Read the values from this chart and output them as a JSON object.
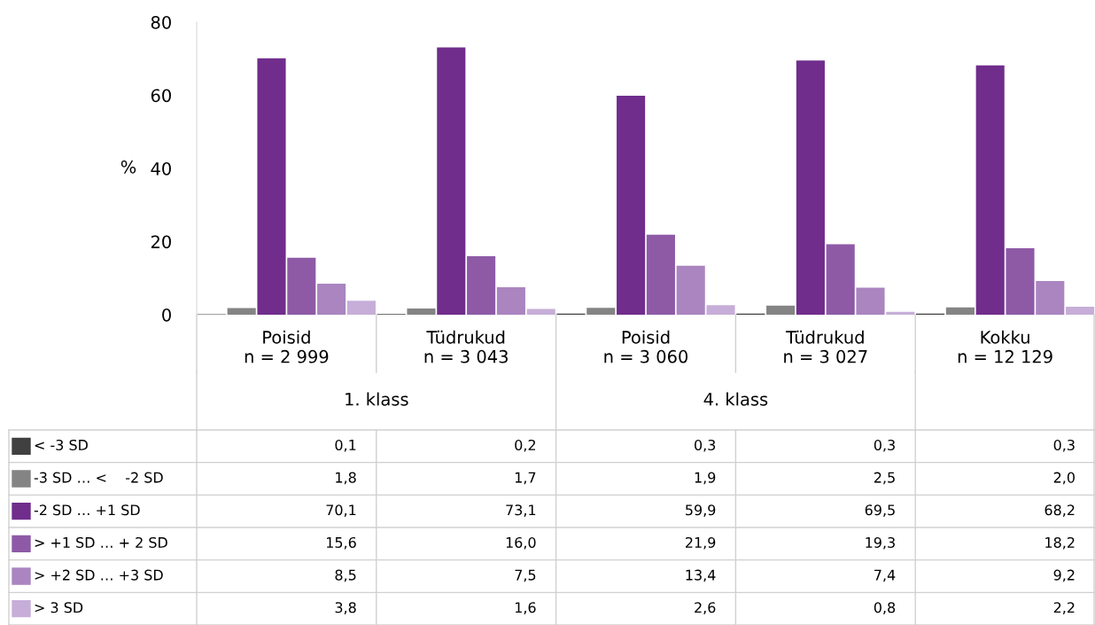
{
  "chart_data": {
    "type": "bar",
    "ylabel": "%",
    "categories": [
      "Poisid\nn = 2 999",
      "Tüdrukud\nn = 3 043",
      "Poisid\nn = 3 060",
      "Tüdrukud\nn = 3 027",
      "Kokku\nn = 12 129"
    ],
    "annotations": [
      "1. klass",
      "4. klass"
    ],
    "series": [
      {
        "name": "< -3 SD",
        "color": "#404040",
        "values": [
          0.1,
          0.2,
          0.3,
          0.3,
          0.3
        ],
        "value_labels": [
          "0,1",
          "0,2",
          "0,3",
          "0,3",
          "0,3"
        ]
      },
      {
        "name": "-3 SD … <    -2 SD",
        "color": "#848484",
        "values": [
          1.8,
          1.7,
          1.9,
          2.5,
          2.0
        ],
        "value_labels": [
          "1,8",
          "1,7",
          "1,9",
          "2,5",
          "2,0"
        ]
      },
      {
        "name": "-2 SD … +1 SD",
        "color": "#702d8c",
        "values": [
          70.1,
          73.1,
          59.9,
          69.5,
          68.2
        ],
        "value_labels": [
          "70,1",
          "73,1",
          "59,9",
          "69,5",
          "68,2"
        ]
      },
      {
        "name": "> +1 SD … + 2 SD",
        "color": "#8e5aa6",
        "values": [
          15.6,
          16.0,
          21.9,
          19.3,
          18.2
        ],
        "value_labels": [
          "15,6",
          "16,0",
          "21,9",
          "19,3",
          "18,2"
        ]
      },
      {
        "name": "> +2 SD … +3 SD",
        "color": "#aa85c0",
        "values": [
          8.5,
          7.5,
          13.4,
          7.4,
          9.2
        ],
        "value_labels": [
          "8,5",
          "7,5",
          "13,4",
          "7,4",
          "9,2"
        ]
      },
      {
        "name": "> 3 SD",
        "color": "#c6aed8",
        "values": [
          3.8,
          1.6,
          2.6,
          0.8,
          2.2
        ],
        "value_labels": [
          "3,8",
          "1,6",
          "2,6",
          "0,8",
          "2,2"
        ]
      }
    ],
    "ylim": [
      0,
      80
    ],
    "yticks": [
      0,
      20,
      40,
      60,
      80
    ],
    "grid": false,
    "legend": "bottom left"
  }
}
